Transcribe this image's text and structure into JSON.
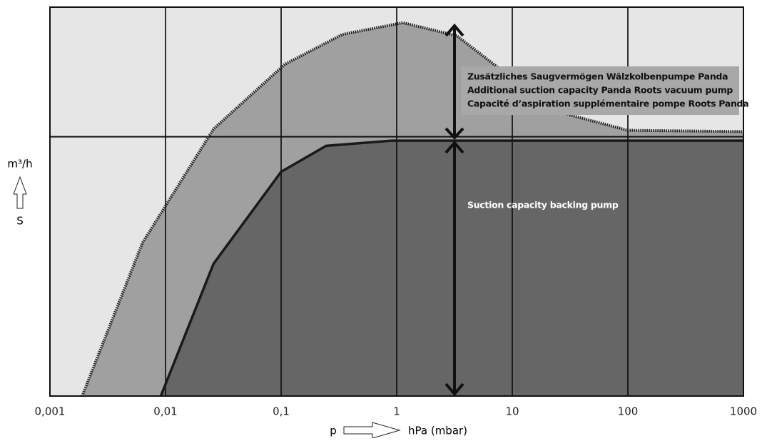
{
  "chart_data": {
    "type": "area",
    "xlog": true,
    "xlim": [
      0.001,
      1000
    ],
    "xticks": [
      {
        "value": 0.001,
        "label": "0,001"
      },
      {
        "value": 0.01,
        "label": "0,01"
      },
      {
        "value": 0.1,
        "label": "0,1"
      },
      1,
      10,
      100,
      1000
    ],
    "ylim": [
      0,
      3
    ],
    "ygrid": [
      2
    ],
    "grid": true,
    "y_label_unit": "m³/h",
    "y_label_symbol": "S",
    "x_label_symbol": "p",
    "x_label_unit": "hPa (mbar)",
    "annotations": [
      "Zusätzliches Saugvermögen Wälzkolbenpumpe Panda",
      "Additional suction capacity Panda Roots vacuum pump",
      "Capacité d’aspiration supplémentaire pompe Roots Panda"
    ],
    "series_label": "Suction capacity backing pump",
    "series": [
      {
        "color": "#a0a0a0",
        "line": "dotted",
        "x": [
          0.0019,
          0.0063,
          0.026,
          0.108,
          0.34,
          1.13,
          3.3,
          10,
          31,
          100,
          1000
        ],
        "values": [
          0,
          1.18,
          2.06,
          2.56,
          2.79,
          2.88,
          2.78,
          2.45,
          2.17,
          2.05,
          2.04
        ]
      },
      {
        "color": "#666666",
        "line": "solid",
        "x": [
          0.0091,
          0.026,
          0.1,
          0.245,
          0.9,
          1000
        ],
        "values": [
          0,
          1.02,
          1.73,
          1.93,
          1.97,
          1.97
        ]
      }
    ]
  }
}
